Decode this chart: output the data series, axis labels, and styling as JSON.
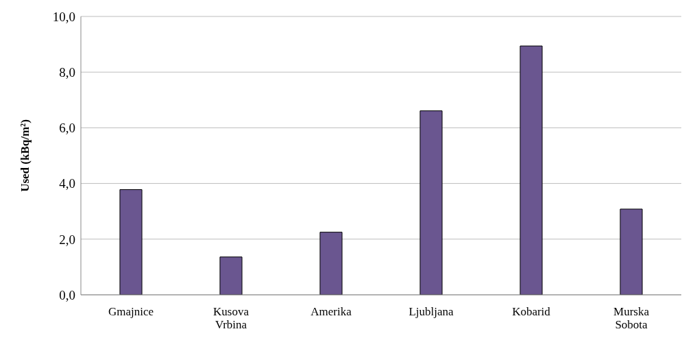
{
  "chart_data": {
    "type": "bar",
    "ylabel": "Used (kBq/m²)",
    "categories": [
      "Gmajnice",
      "Kusova Vrbina",
      "Amerika",
      "Ljubljana",
      "Kobarid",
      "Murska Sobota"
    ],
    "values": [
      3.78,
      1.36,
      2.25,
      6.61,
      8.94,
      3.08
    ],
    "color": "#6a5690",
    "ylim": [
      0,
      10
    ],
    "yticks": [
      {
        "value": 0,
        "label": "0,0"
      },
      {
        "value": 2,
        "label": "2,0"
      },
      {
        "value": 4,
        "label": "4,0"
      },
      {
        "value": 6,
        "label": "6,0"
      },
      {
        "value": 8,
        "label": "8,0"
      },
      {
        "value": 10,
        "label": "10,0"
      }
    ],
    "grid": "y"
  }
}
